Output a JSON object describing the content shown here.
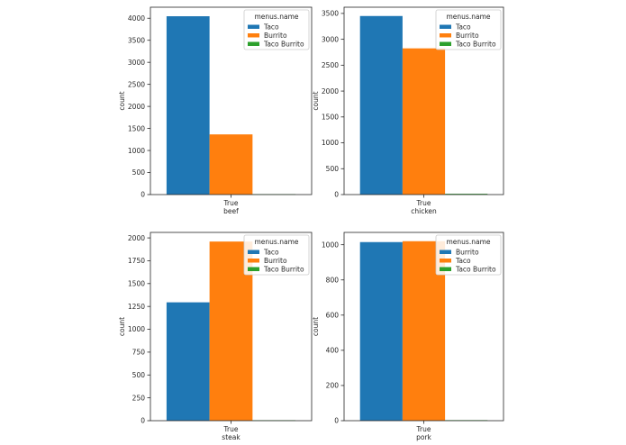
{
  "chart_data": [
    {
      "type": "bar",
      "categories": [
        "True"
      ],
      "xlabel": "beef",
      "ylabel": "count",
      "ylim": [
        0,
        4250
      ],
      "yticks": [
        0,
        500,
        1000,
        1500,
        2000,
        2500,
        3000,
        3500,
        4000
      ],
      "legend_title": "menus.name",
      "legend_position": "top-right",
      "series": [
        {
          "name": "Taco",
          "color": "#1f77b4",
          "values": [
            4045
          ]
        },
        {
          "name": "Burrito",
          "color": "#ff7f0e",
          "values": [
            1365
          ]
        },
        {
          "name": "Taco Burrito",
          "color": "#2ca02c",
          "values": [
            10
          ]
        }
      ]
    },
    {
      "type": "bar",
      "categories": [
        "True"
      ],
      "xlabel": "chicken",
      "ylabel": "count",
      "ylim": [
        0,
        3620
      ],
      "yticks": [
        0,
        500,
        1000,
        1500,
        2000,
        2500,
        3000,
        3500
      ],
      "legend_title": "menus.name",
      "legend_position": "top-right",
      "series": [
        {
          "name": "Taco",
          "color": "#1f77b4",
          "values": [
            3450
          ]
        },
        {
          "name": "Burrito",
          "color": "#ff7f0e",
          "values": [
            2825
          ]
        },
        {
          "name": "Taco Burrito",
          "color": "#2ca02c",
          "values": [
            15
          ]
        }
      ]
    },
    {
      "type": "bar",
      "categories": [
        "True"
      ],
      "xlabel": "steak",
      "ylabel": "count",
      "ylim": [
        0,
        2060
      ],
      "yticks": [
        0,
        250,
        500,
        750,
        1000,
        1250,
        1500,
        1750,
        2000
      ],
      "legend_title": "menus.name",
      "legend_position": "top-right",
      "series": [
        {
          "name": "Taco",
          "color": "#1f77b4",
          "values": [
            1295
          ]
        },
        {
          "name": "Burrito",
          "color": "#ff7f0e",
          "values": [
            1960
          ]
        },
        {
          "name": "Taco Burrito",
          "color": "#2ca02c",
          "values": [
            5
          ]
        }
      ]
    },
    {
      "type": "bar",
      "categories": [
        "True"
      ],
      "xlabel": "pork",
      "ylabel": "count",
      "ylim": [
        0,
        1070
      ],
      "yticks": [
        0,
        200,
        400,
        600,
        800,
        1000
      ],
      "legend_title": "menus.name",
      "legend_position": "top-right",
      "series": [
        {
          "name": "Burrito",
          "color": "#1f77b4",
          "values": [
            1015
          ]
        },
        {
          "name": "Taco",
          "color": "#ff7f0e",
          "values": [
            1020
          ]
        },
        {
          "name": "Taco Burrito",
          "color": "#2ca02c",
          "values": [
            3
          ]
        }
      ]
    }
  ]
}
